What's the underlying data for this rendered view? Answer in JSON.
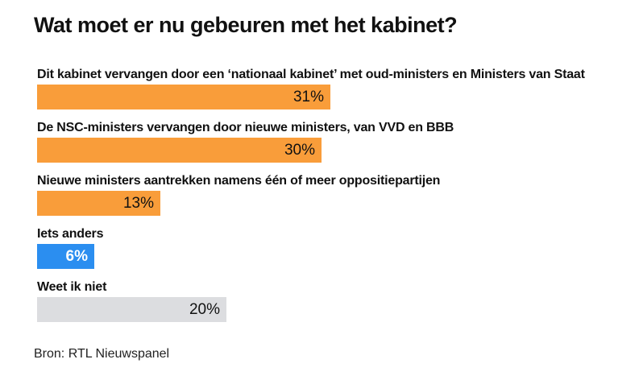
{
  "title": "Wat moet er nu gebeuren met het kabinet?",
  "source": "Bron: RTL Nieuwspanel",
  "colors": {
    "orange": "#f99d3a",
    "blue": "#2b8ef0",
    "grey": "#dcdde0"
  },
  "chart_data": {
    "type": "bar",
    "orientation": "horizontal",
    "unit": "%",
    "categories": [
      "Dit kabinet vervangen door een ‘nationaal kabinet’ met oud-ministers en Ministers van Staat",
      "De NSC-ministers vervangen door nieuwe ministers, van VVD en BBB",
      "Nieuwe ministers aantrekken namens één of meer oppositiepartijen",
      "Iets anders",
      "Weet ik niet"
    ],
    "values": [
      31,
      30,
      13,
      6,
      20
    ],
    "value_labels": [
      "31%",
      "30%",
      "13%",
      "6%",
      "20%"
    ],
    "bar_colors": [
      "orange",
      "orange",
      "orange",
      "blue",
      "grey"
    ],
    "label_colors": [
      "#111111",
      "#111111",
      "#111111",
      "#ffffff",
      "#111111"
    ],
    "xlim": [
      0,
      100
    ],
    "grid": false,
    "legend": "none"
  }
}
